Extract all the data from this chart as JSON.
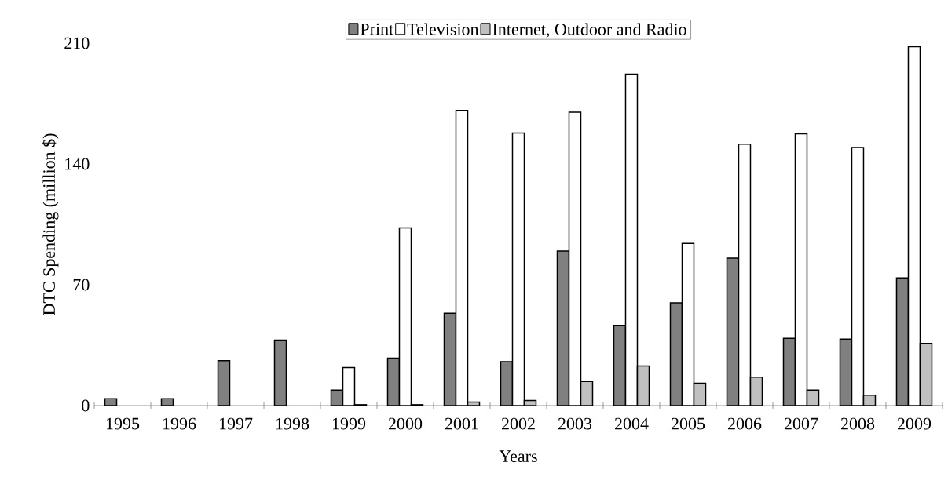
{
  "chart_data": {
    "type": "bar",
    "xlabel": "Years",
    "ylabel": "DTC Spending (million $)",
    "categories": [
      "1995",
      "1996",
      "1997",
      "1998",
      "1999",
      "2000",
      "2001",
      "2002",
      "2003",
      "2004",
      "2005",
      "2006",
      "2007",
      "2008",
      "2009"
    ],
    "series": [
      {
        "name": "Print",
        "color": "#808080",
        "values": [
          4,
          4,
          26,
          38,
          9,
          27.5,
          53.5,
          25.5,
          89.5,
          46.5,
          59.5,
          85.5,
          39,
          38.5,
          74
        ]
      },
      {
        "name": "Television",
        "color": "#ffffff",
        "values": [
          null,
          null,
          null,
          null,
          22,
          103,
          171,
          158,
          170,
          192,
          94,
          151.5,
          157.5,
          149.5,
          208
        ]
      },
      {
        "name": "Internet, Outdoor and Radio",
        "color": "#c0c0c0",
        "values": [
          null,
          null,
          null,
          null,
          0.5,
          0.5,
          2,
          3,
          14,
          23,
          13,
          16.5,
          9,
          6,
          36
        ]
      }
    ],
    "ylim": [
      0,
      210
    ],
    "yticks": [
      0,
      70,
      140,
      210
    ],
    "legend": "top",
    "grid": false
  }
}
